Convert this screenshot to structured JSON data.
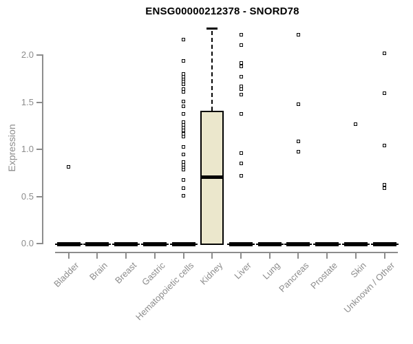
{
  "chart_data": {
    "type": "boxplot",
    "title": "ENSG00000212378 - SNORD78",
    "ylabel": "Expression",
    "xlabel": "",
    "ylim": [
      0,
      2.3
    ],
    "grid": false,
    "yticks": [
      {
        "label": "0.0",
        "value": 0.0
      },
      {
        "label": "0.5",
        "value": 0.5
      },
      {
        "label": "1.0",
        "value": 1.0
      },
      {
        "label": "1.5",
        "value": 1.5
      },
      {
        "label": "2.0",
        "value": 2.0
      }
    ],
    "categories": [
      "Bladder",
      "Brain",
      "Breast",
      "Gastric",
      "Hematopoietic cells",
      "Kidney",
      "Liver",
      "Lung",
      "Pancreas",
      "Prostate",
      "Skin",
      "Unknown / Other"
    ],
    "boxes": [
      {
        "category": "Bladder",
        "q1": 0,
        "median": 0,
        "q3": 0,
        "whisker_low": 0,
        "whisker_high": 0,
        "outliers": [
          0.81
        ]
      },
      {
        "category": "Brain",
        "q1": 0,
        "median": 0,
        "q3": 0,
        "whisker_low": 0,
        "whisker_high": 0,
        "outliers": []
      },
      {
        "category": "Breast",
        "q1": 0,
        "median": 0,
        "q3": 0,
        "whisker_low": 0,
        "whisker_high": 0,
        "outliers": []
      },
      {
        "category": "Gastric",
        "q1": 0,
        "median": 0,
        "q3": 0,
        "whisker_low": 0,
        "whisker_high": 0,
        "outliers": []
      },
      {
        "category": "Hematopoietic cells",
        "q1": 0,
        "median": 0,
        "q3": 0,
        "whisker_low": 0,
        "whisker_high": 0,
        "outliers": [
          2.16,
          1.93,
          1.79,
          1.76,
          1.73,
          1.71,
          1.68,
          1.63,
          1.6,
          1.5,
          1.45,
          1.37,
          1.28,
          1.25,
          1.22,
          1.19,
          1.16,
          1.13,
          1.02,
          0.94,
          0.86,
          0.83,
          0.8,
          0.78,
          0.67,
          0.58,
          0.5
        ]
      },
      {
        "category": "Kidney",
        "q1": 0.0,
        "median": 0.7,
        "q3": 1.4,
        "whisker_low": 0.0,
        "whisker_high": 2.27,
        "outliers": []
      },
      {
        "category": "Liver",
        "q1": 0,
        "median": 0,
        "q3": 0,
        "whisker_low": 0,
        "whisker_high": 0,
        "outliers": [
          2.21,
          2.1,
          1.91,
          1.87,
          1.76,
          1.66,
          1.63,
          1.57,
          1.37,
          0.95,
          0.84,
          0.71
        ]
      },
      {
        "category": "Lung",
        "q1": 0,
        "median": 0,
        "q3": 0,
        "whisker_low": 0,
        "whisker_high": 0,
        "outliers": []
      },
      {
        "category": "Pancreas",
        "q1": 0,
        "median": 0,
        "q3": 0,
        "whisker_low": 0,
        "whisker_high": 0,
        "outliers": [
          2.21,
          1.47,
          1.08,
          0.97
        ]
      },
      {
        "category": "Prostate",
        "q1": 0,
        "median": 0,
        "q3": 0,
        "whisker_low": 0,
        "whisker_high": 0,
        "outliers": []
      },
      {
        "category": "Skin",
        "q1": 0,
        "median": 0,
        "q3": 0,
        "whisker_low": 0,
        "whisker_high": 0,
        "outliers": [
          1.26
        ]
      },
      {
        "category": "Unknown / Other",
        "q1": 0,
        "median": 0,
        "q3": 0,
        "whisker_low": 0,
        "whisker_high": 0,
        "outliers": [
          2.01,
          1.59,
          1.03,
          0.62,
          0.58
        ]
      }
    ],
    "colors": {
      "box_fill": "#EBE7CC",
      "box_border": "#000000",
      "axis": "#8C8C8C",
      "tick_label": "#8C8C8C",
      "title": "#000000",
      "background": "#FFFFFF"
    }
  }
}
